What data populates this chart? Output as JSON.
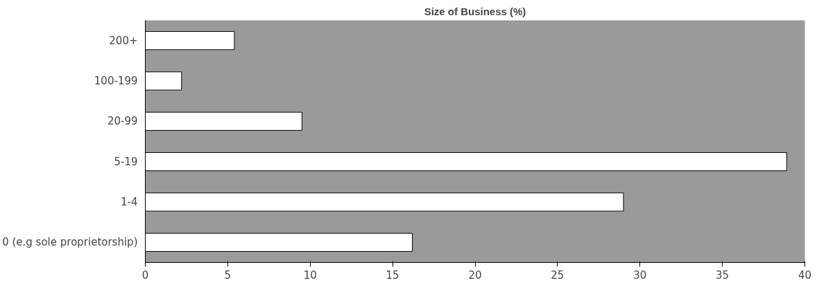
{
  "chart_data": {
    "type": "bar",
    "orientation": "horizontal",
    "title": "Size of Business (%)",
    "categories": [
      "200+",
      "100-199",
      "20-99",
      "5-19",
      "1-4",
      "0 (e.g sole proprietorship)"
    ],
    "series": [
      {
        "color": "#ffffff",
        "values": [
          5.4,
          2.2,
          9.5,
          38.9,
          29.0,
          16.2
        ]
      }
    ],
    "xlim": [
      0,
      40
    ],
    "xticks": [
      0,
      5,
      10,
      15,
      20,
      25,
      30,
      35,
      40
    ],
    "grid": false
  }
}
